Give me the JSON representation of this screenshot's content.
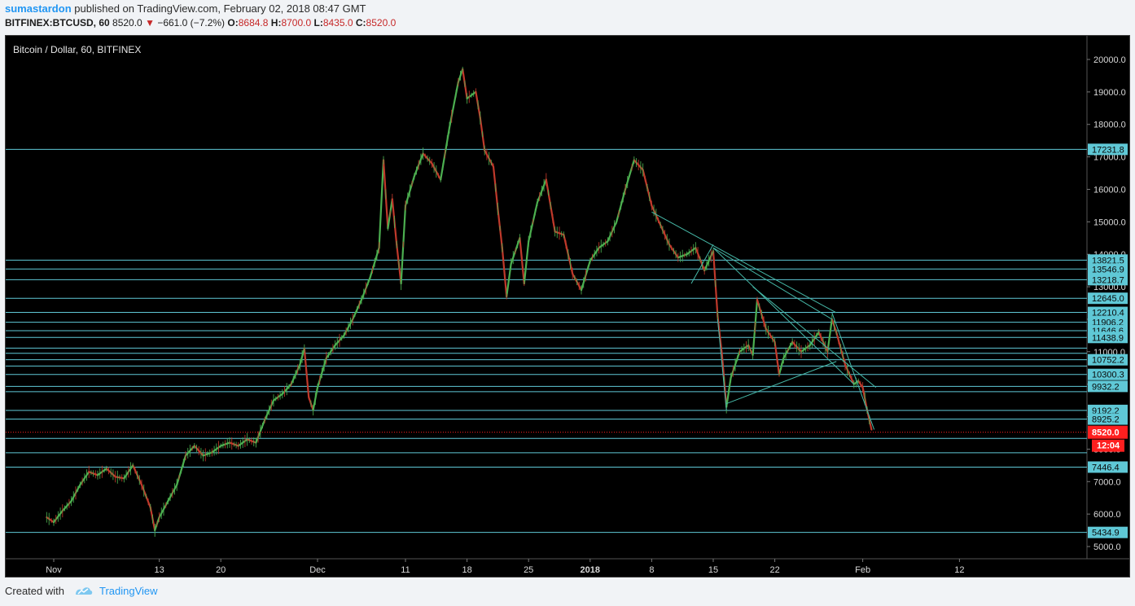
{
  "header": {
    "author": "sumastardon",
    "published": "published on TradingView.com, February 02, 2018 08:47 GMT",
    "symbol": "BITFINEX:BTCUSD, 60",
    "last": "8520.0",
    "change": "−661.0 (−7.2%)",
    "o_label": "O:",
    "o_value": "8684.8",
    "h_label": "H:",
    "h_value": "8700.0",
    "l_label": "L:",
    "l_value": "8435.0",
    "c_label": "C:",
    "c_value": "8520.0"
  },
  "footer": {
    "created_with": "Created with",
    "brand": "TradingView"
  },
  "colors": {
    "up": "#4caf50",
    "down": "#c0392b",
    "hline": "#5fc8d6",
    "trend": "#46b9a8",
    "price_red": "#ff1f1f",
    "axis_text": "#d8d8d8"
  },
  "chart_data": {
    "type": "line",
    "title": "Bitcoin / Dollar, 60, BITFINEX",
    "xlabel": "",
    "ylabel": "",
    "y_ticks": [
      5000,
      6000,
      7000,
      8000,
      9000,
      10000,
      11000,
      12000,
      13000,
      14000,
      15000,
      16000,
      17000,
      18000,
      19000,
      20000
    ],
    "x_ticks": [
      {
        "label": "Nov",
        "day": 1
      },
      {
        "label": "13",
        "day": 13
      },
      {
        "label": "20",
        "day": 20
      },
      {
        "label": "Dec",
        "day": 31
      },
      {
        "label": "11",
        "day": 41
      },
      {
        "label": "18",
        "day": 48
      },
      {
        "label": "25",
        "day": 55
      },
      {
        "label": "2018",
        "day": 62
      },
      {
        "label": "8",
        "day": 69
      },
      {
        "label": "15",
        "day": 76
      },
      {
        "label": "22",
        "day": 83
      },
      {
        "label": "Feb",
        "day": 93
      },
      {
        "label": "12",
        "day": 104
      }
    ],
    "series": [
      {
        "values": [
          [
            0.2,
            5900
          ],
          [
            1,
            5750
          ],
          [
            2,
            6100
          ],
          [
            3,
            6400
          ],
          [
            4,
            6900
          ],
          [
            5,
            7300
          ],
          [
            6,
            7200
          ],
          [
            7,
            7400
          ],
          [
            8,
            7150
          ],
          [
            9,
            7100
          ],
          [
            10,
            7500
          ],
          [
            11,
            6900
          ],
          [
            12,
            6200
          ],
          [
            12.5,
            5500
          ],
          [
            13,
            5900
          ],
          [
            14,
            6400
          ],
          [
            15,
            6900
          ],
          [
            16,
            7800
          ],
          [
            17,
            8100
          ],
          [
            18,
            7800
          ],
          [
            19,
            7900
          ],
          [
            20,
            8100
          ],
          [
            21,
            8200
          ],
          [
            22,
            8100
          ],
          [
            23,
            8300
          ],
          [
            24,
            8200
          ],
          [
            25,
            8900
          ],
          [
            26,
            9500
          ],
          [
            27,
            9700
          ],
          [
            28,
            10000
          ],
          [
            29,
            10600
          ],
          [
            29.5,
            11100
          ],
          [
            30,
            9600
          ],
          [
            30.5,
            9200
          ],
          [
            31,
            9900
          ],
          [
            32,
            10800
          ],
          [
            33,
            11200
          ],
          [
            34,
            11500
          ],
          [
            35,
            12000
          ],
          [
            36,
            12600
          ],
          [
            37,
            13300
          ],
          [
            38,
            14200
          ],
          [
            38.5,
            16900
          ],
          [
            39,
            14800
          ],
          [
            39.5,
            15700
          ],
          [
            40,
            14300
          ],
          [
            40.5,
            13100
          ],
          [
            41,
            15500
          ],
          [
            42,
            16400
          ],
          [
            43,
            17100
          ],
          [
            44,
            16800
          ],
          [
            45,
            16300
          ],
          [
            46,
            17900
          ],
          [
            47,
            19300
          ],
          [
            47.5,
            19700
          ],
          [
            48,
            18800
          ],
          [
            49,
            19000
          ],
          [
            49.5,
            18200
          ],
          [
            50,
            17200
          ],
          [
            51,
            16700
          ],
          [
            51.5,
            15400
          ],
          [
            52,
            14200
          ],
          [
            52.5,
            12700
          ],
          [
            53,
            13700
          ],
          [
            54,
            14500
          ],
          [
            54.5,
            13100
          ],
          [
            55,
            14400
          ],
          [
            56,
            15600
          ],
          [
            57,
            16300
          ],
          [
            58,
            14700
          ],
          [
            59,
            14600
          ],
          [
            60,
            13400
          ],
          [
            61,
            12900
          ],
          [
            62,
            13800
          ],
          [
            63,
            14200
          ],
          [
            64,
            14400
          ],
          [
            65,
            15000
          ],
          [
            66,
            16000
          ],
          [
            67,
            16900
          ],
          [
            68,
            16600
          ],
          [
            69,
            15500
          ],
          [
            70,
            14900
          ],
          [
            71,
            14300
          ],
          [
            72,
            13900
          ],
          [
            73,
            14000
          ],
          [
            74,
            14200
          ],
          [
            75,
            13500
          ],
          [
            76,
            14100
          ],
          [
            76.5,
            12100
          ],
          [
            77,
            10900
          ],
          [
            77.5,
            9300
          ],
          [
            78,
            10200
          ],
          [
            79,
            11000
          ],
          [
            80,
            11200
          ],
          [
            80.5,
            10900
          ],
          [
            81,
            12600
          ],
          [
            82,
            11700
          ],
          [
            83,
            11300
          ],
          [
            83.5,
            10300
          ],
          [
            84,
            10800
          ],
          [
            85,
            11300
          ],
          [
            86,
            11000
          ],
          [
            87,
            11200
          ],
          [
            88,
            11600
          ],
          [
            89,
            11000
          ],
          [
            89.5,
            12000
          ],
          [
            90,
            11600
          ],
          [
            91,
            10600
          ],
          [
            92,
            10000
          ],
          [
            92.5,
            10100
          ],
          [
            93,
            9900
          ],
          [
            93.5,
            9200
          ],
          [
            94,
            8600
          ]
        ]
      }
    ],
    "hlines": [
      {
        "value": 17231.8,
        "label": "17231.8"
      },
      {
        "value": 13821.5,
        "label": "13821.5"
      },
      {
        "value": 13546.9,
        "label": "13546.9"
      },
      {
        "value": 13218.7,
        "label": "13218.7"
      },
      {
        "value": 12645.0,
        "label": "12645.0"
      },
      {
        "value": 12210.4,
        "label": "12210.4"
      },
      {
        "value": 11906.2,
        "label": "11906.2"
      },
      {
        "value": 11646.6,
        "label": "11646.6"
      },
      {
        "value": 11438.9,
        "label": "11438.9"
      },
      {
        "value": 11110.0,
        "label": ""
      },
      {
        "value": 10950.0,
        "label": ""
      },
      {
        "value": 10752.2,
        "label": "10752.2"
      },
      {
        "value": 10560.0,
        "label": ""
      },
      {
        "value": 10300.3,
        "label": "10300.3"
      },
      {
        "value": 9932.2,
        "label": "9932.2"
      },
      {
        "value": 9770.0,
        "label": ""
      },
      {
        "value": 9192.2,
        "label": "9192.2"
      },
      {
        "value": 8925.2,
        "label": "8925.2"
      },
      {
        "value": 8330.0,
        "label": ""
      },
      {
        "value": 7887.0,
        "label": ""
      },
      {
        "value": 7446.4,
        "label": "7446.4"
      },
      {
        "value": 5434.9,
        "label": "5434.9"
      }
    ],
    "trendlines": [
      [
        [
          69,
          15300
        ],
        [
          90,
          12200
        ]
      ],
      [
        [
          76,
          14200
        ],
        [
          89.5,
          12000
        ]
      ],
      [
        [
          80.5,
          13000
        ],
        [
          94.5,
          9900
        ]
      ],
      [
        [
          76,
          14200
        ],
        [
          92,
          10000
        ]
      ],
      [
        [
          77.5,
          9400
        ],
        [
          90,
          10700
        ]
      ],
      [
        [
          77.5,
          9200
        ],
        [
          76.5,
          12000
        ]
      ],
      [
        [
          73.5,
          13100
        ],
        [
          76,
          14300
        ]
      ],
      [
        [
          89.5,
          12200
        ],
        [
          94.3,
          8600
        ]
      ]
    ],
    "last_price": {
      "value": 8520.0,
      "label": "8520.0",
      "countdown": "12:04"
    }
  }
}
